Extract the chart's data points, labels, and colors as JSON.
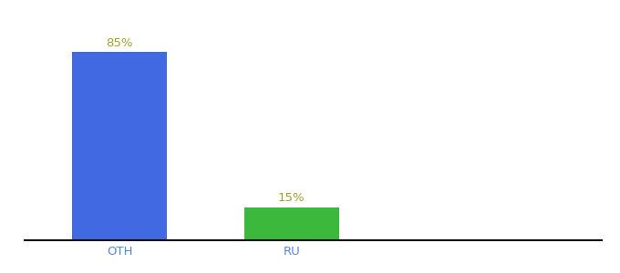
{
  "categories": [
    "OTH",
    "RU"
  ],
  "values": [
    85,
    15
  ],
  "bar_colors": [
    "#4169e1",
    "#3cb83c"
  ],
  "label_color": "#a0a030",
  "labels": [
    "85%",
    "15%"
  ],
  "background_color": "#ffffff",
  "ylim": [
    0,
    100
  ],
  "bar_width": 0.55,
  "label_fontsize": 9.5,
  "tick_fontsize": 9.5,
  "tick_color": "#5588cc",
  "spine_color": "#111111"
}
